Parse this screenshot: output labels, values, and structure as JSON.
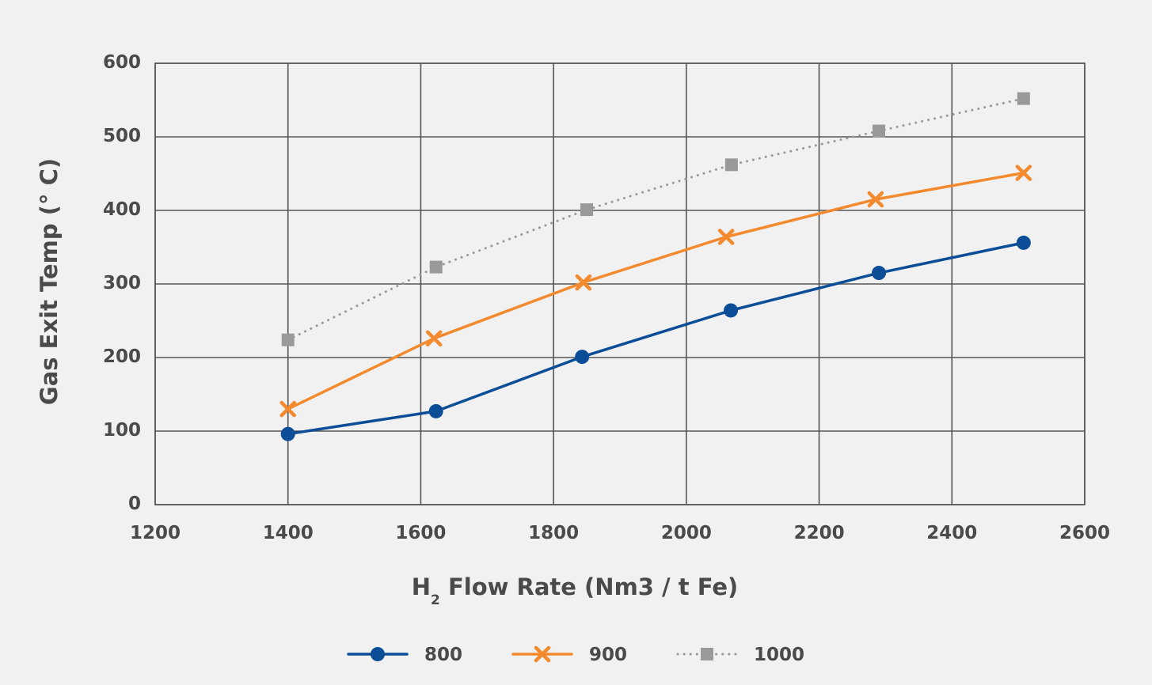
{
  "chart_data": {
    "type": "line",
    "title": "",
    "xlabel_main": "H",
    "xlabel_sub": "2",
    "xlabel_rest": " Flow Rate (Nm3 / t Fe)",
    "ylabel": "Gas Exit Temp (° C)",
    "xlim": [
      1200,
      2600
    ],
    "ylim": [
      0,
      600
    ],
    "x_ticks": [
      "1200",
      "1400",
      "1600",
      "1800",
      "2000",
      "2200",
      "2400",
      "2600"
    ],
    "y_ticks": [
      "0",
      "100",
      "200",
      "300",
      "400",
      "500",
      "600"
    ],
    "grid": true,
    "legend_position": "bottom-center",
    "series": [
      {
        "name": "800",
        "color": "#0b4d96",
        "marker": "circle",
        "line": "solid",
        "x": [
          1400,
          1623,
          1843,
          2067,
          2290,
          2508
        ],
        "y": [
          96,
          127,
          201,
          264,
          315,
          356
        ]
      },
      {
        "name": "900",
        "color": "#f38a2e",
        "marker": "x",
        "line": "solid",
        "x": [
          1400,
          1620,
          1845,
          2060,
          2285,
          2508
        ],
        "y": [
          130,
          226,
          302,
          364,
          415,
          451
        ]
      },
      {
        "name": "1000",
        "color": "#999999",
        "marker": "square",
        "line": "dotted",
        "x": [
          1400,
          1623,
          1850,
          2068,
          2290,
          2508
        ],
        "y": [
          224,
          323,
          401,
          462,
          508,
          552
        ]
      }
    ]
  }
}
